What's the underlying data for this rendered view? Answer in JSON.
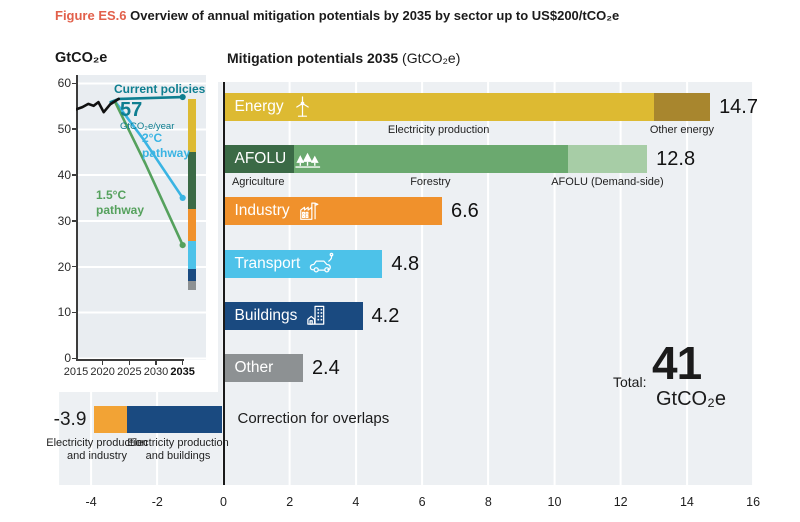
{
  "figure_label": "Figure ES.6",
  "figure_title": "Overview of annual mitigation potentials by 2035 by sector up to US$200/tCO₂e",
  "main_title": "Mitigation potentials 2035",
  "main_title_unit": " (GtCO₂e)",
  "inset": {
    "ylabel": "GtCO₂e",
    "current_policies_label": "Current policies",
    "annotation_value": "57",
    "annotation_unit": "GtCO₂e/year",
    "two_deg_label": "2°C\npathway",
    "one_five_label": "1.5°C\npathway"
  },
  "total": {
    "label": "Total:",
    "value": "41",
    "unit": "GtCO₂e"
  },
  "colors": {
    "figure_tag": "#e2604b",
    "energy_yellow": "#ddba32",
    "other_energy_gold": "#a8862e",
    "afolu_dark_green": "#3b6a46",
    "afolu_mid_green": "#6ba96f",
    "afolu_light_green": "#a7cda6",
    "industry_orange": "#f0912c",
    "transport_cyan": "#4dc2e9",
    "buildings_navy": "#1a4a80",
    "other_gray": "#8d9193",
    "correction_orange": "#f2a335",
    "current_policies_teal": "#0e7e90",
    "two_deg_blue": "#3ab4e3",
    "one_five_green": "#55a15d",
    "panel_gray": "#edf0f3"
  },
  "chart_data": [
    {
      "type": "line",
      "name": "emission-pathways-inset",
      "ylabel": "GtCO₂e",
      "ylim": [
        0,
        60
      ],
      "grid": true,
      "y_ticks": [
        0,
        10,
        20,
        30,
        40,
        50,
        60
      ],
      "x_ticks": [
        2015,
        2020,
        2025,
        2030,
        2035
      ],
      "series": [
        {
          "name": "Historical",
          "color": "#101010",
          "end_dot": false,
          "points": [
            [
              2015,
              54.3
            ],
            [
              2016.2,
              54.8
            ],
            [
              2017.3,
              55.5
            ],
            [
              2018.3,
              55.1
            ],
            [
              2019.2,
              55.9
            ],
            [
              2020.2,
              53.7
            ],
            [
              2021.4,
              55.4
            ],
            [
              2023,
              56.6
            ]
          ]
        },
        {
          "name": "Current policies",
          "color": "#0e7e90",
          "end_dot": true,
          "points": [
            [
              2021.5,
              55.9
            ],
            [
              2023,
              56.6
            ],
            [
              2035,
              57
            ]
          ]
        },
        {
          "name": "2°C pathway",
          "color": "#3ab4e3",
          "end_dot": true,
          "points": [
            [
              2022.3,
              56.1
            ],
            [
              2027.5,
              48
            ],
            [
              2035,
              35
            ]
          ]
        },
        {
          "name": "1.5°C pathway",
          "color": "#55a15d",
          "end_dot": true,
          "points": [
            [
              2022.3,
              56
            ],
            [
              2028,
              42.5
            ],
            [
              2035,
              24.7
            ]
          ]
        }
      ],
      "annotation": {
        "value": "57",
        "unit": "GtCO₂e/year",
        "at_year": 2023
      },
      "wedge_bar": {
        "top_value": 56.6,
        "segments": [
          {
            "sector": "Energy",
            "value": 11.6,
            "color": "#ddba32"
          },
          {
            "sector": "AFOLU",
            "value": 12.5,
            "color": "#3b6a46"
          },
          {
            "sector": "Industry",
            "value": 6.9,
            "color": "#f0912c"
          },
          {
            "sector": "Transport",
            "value": 6.0,
            "color": "#4dc2e9"
          },
          {
            "sector": "Buildings",
            "value": 2.8,
            "color": "#1a4a80"
          },
          {
            "sector": "Other",
            "value": 1.8,
            "color": "#8d9193"
          }
        ]
      }
    },
    {
      "type": "bar",
      "name": "mitigation-potentials-2035",
      "title": "Mitigation potentials 2035 (GtCO₂e)",
      "xlim": [
        -5,
        16
      ],
      "x_ticks": [
        -4,
        -2,
        0,
        2,
        4,
        6,
        8,
        10,
        12,
        14,
        16
      ],
      "bars": [
        {
          "label": "Energy",
          "icon": "wind-turbine-icon",
          "value": 14.7,
          "segments": [
            {
              "name": "Electricity production",
              "value": 13.0,
              "color": "#ddba32"
            },
            {
              "name": "Other energy",
              "value": 1.7,
              "color": "#a8862e"
            }
          ]
        },
        {
          "label": "AFOLU",
          "icon": "trees-icon",
          "value": 12.8,
          "segments": [
            {
              "name": "Agriculture",
              "value": 2.1,
              "color": "#3b6a46"
            },
            {
              "name": "Forestry",
              "value": 8.3,
              "color": "#6ba96f"
            },
            {
              "name": "AFOLU (Demand-side)",
              "value": 2.4,
              "color": "#a7cda6"
            }
          ]
        },
        {
          "label": "Industry",
          "icon": "factory-icon",
          "value": 6.6,
          "color": "#f0912c"
        },
        {
          "label": "Transport",
          "icon": "car-icon",
          "value": 4.8,
          "color": "#4dc2e9"
        },
        {
          "label": "Buildings",
          "icon": "building-icon",
          "value": 4.2,
          "color": "#1a4a80"
        },
        {
          "label": "Other",
          "icon": null,
          "value": 2.4,
          "color": "#8d9193"
        }
      ],
      "correction": {
        "label": "Correction for overlaps",
        "value": -3.9,
        "segments": [
          {
            "name": "Electricity production\nand industry",
            "value": 1.0,
            "color": "#f2a335"
          },
          {
            "name": "Electricity production\nand buildings",
            "value": 2.9,
            "color": "#1a4a80"
          }
        ]
      },
      "total": {
        "label": "Total:",
        "value": 41,
        "unit": "GtCO₂e"
      }
    }
  ]
}
